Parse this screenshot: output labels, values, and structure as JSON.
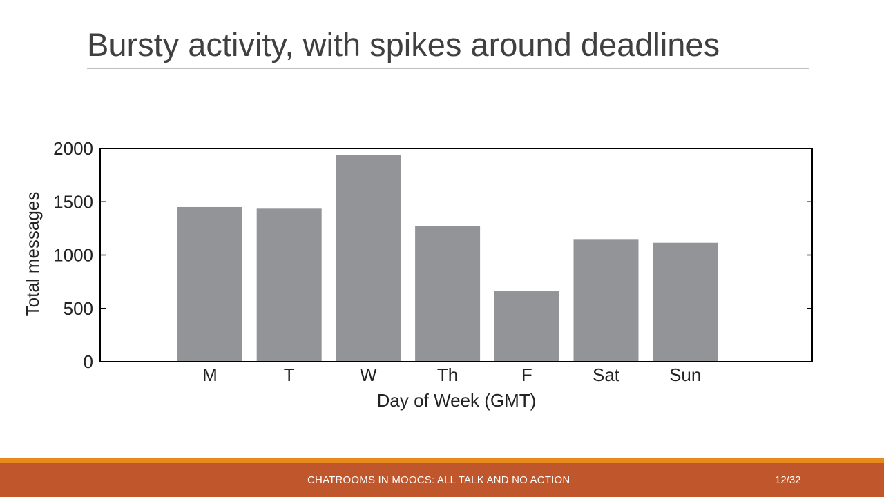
{
  "slide": {
    "title": "Bursty activity, with spikes around deadlines",
    "footer_text": "CHATROOMS IN MOOCS: ALL TALK AND NO ACTION",
    "page_number": "12/32"
  },
  "colors": {
    "bar": "#939498",
    "footer_band": "#c0562b",
    "footer_stripe": "#e6891f",
    "title_text": "#404040"
  },
  "chart_data": {
    "type": "bar",
    "categories": [
      "M",
      "T",
      "W",
      "Th",
      "F",
      "Sat",
      "Sun"
    ],
    "values": [
      1450,
      1435,
      1940,
      1275,
      660,
      1150,
      1115
    ],
    "xlabel": "Day of Week (GMT)",
    "ylabel": "Total messages",
    "ylim": [
      0,
      2000
    ],
    "yticks": [
      0,
      500,
      1000,
      1500,
      2000
    ],
    "grid": false,
    "legend": "none"
  }
}
